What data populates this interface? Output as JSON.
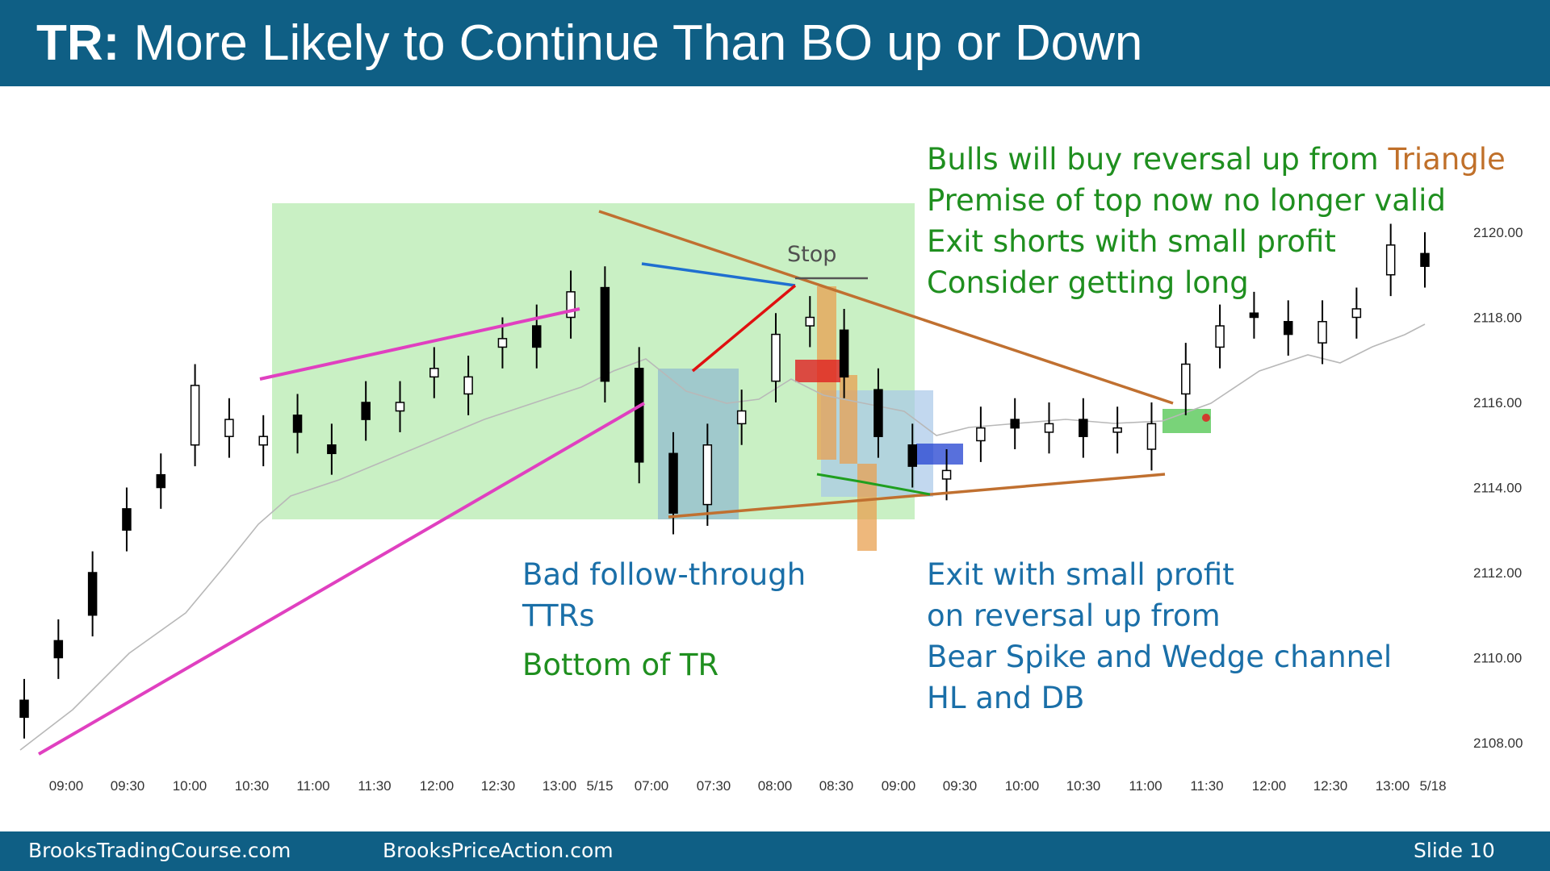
{
  "slide": {
    "title_bold": "TR:",
    "title_rest": " More Likely to Continue Than BO up or Down",
    "footer_left": "BrooksTradingCourse.com",
    "footer_mid": "BrooksPriceAction.com",
    "footer_right": "Slide  10"
  },
  "colors": {
    "header": "#0f5f85",
    "green_text": "#1f8f1f",
    "blue_text": "#1a6fa8",
    "orange_text": "#c0702a",
    "tr_box": "#c9f0c4",
    "magenta_line": "#e040c0",
    "orange_line": "#c07030",
    "blue_line": "#1f6fd0",
    "red_line": "#e01010"
  },
  "chart_data": {
    "type": "candlestick",
    "x_ticks": [
      "09:00",
      "09:30",
      "10:00",
      "10:30",
      "11:00",
      "11:30",
      "12:00",
      "12:30",
      "13:00",
      "5/15",
      "07:00",
      "07:30",
      "08:00",
      "08:30",
      "09:00",
      "09:30",
      "10:00",
      "10:30",
      "11:00",
      "11:30",
      "12:00",
      "12:30",
      "13:00",
      "5/18"
    ],
    "y_ticks": [
      "2120.00",
      "2118.00",
      "2116.00",
      "2114.00",
      "2112.00",
      "2110.00",
      "2108.00"
    ],
    "y_range": [
      2107.5,
      2121.5
    ],
    "ohlc_points": [
      [
        2109,
        2108.6
      ],
      [
        2110.4,
        2110
      ],
      [
        2112,
        2111
      ],
      [
        2113.5,
        2113
      ],
      [
        2114.3,
        2114
      ],
      [
        2115,
        2116.4
      ],
      [
        2115.2,
        2115.6
      ],
      [
        2115,
        2115.2
      ],
      [
        2115.7,
        2115.3
      ],
      [
        2115,
        2114.8
      ],
      [
        2116,
        2115.6
      ],
      [
        2115.8,
        2116
      ],
      [
        2116.6,
        2116.8
      ],
      [
        2116.2,
        2116.6
      ],
      [
        2117.3,
        2117.5
      ],
      [
        2117.8,
        2117.3
      ],
      [
        2118,
        2118.6
      ],
      [
        2118.7,
        2116.5
      ],
      [
        2116.8,
        2114.6
      ],
      [
        2114.8,
        2113.4
      ],
      [
        2113.6,
        2115
      ],
      [
        2115.5,
        2115.8
      ],
      [
        2116.5,
        2117.6
      ],
      [
        2117.8,
        2118
      ],
      [
        2117.7,
        2116.6
      ],
      [
        2116.3,
        2115.2
      ],
      [
        2115,
        2114.5
      ],
      [
        2114.2,
        2114.4
      ],
      [
        2115.1,
        2115.4
      ],
      [
        2115.6,
        2115.4
      ],
      [
        2115.3,
        2115.5
      ],
      [
        2115.6,
        2115.2
      ],
      [
        2115.3,
        2115.4
      ],
      [
        2114.9,
        2115.5
      ],
      [
        2116.2,
        2116.9
      ],
      [
        2117.3,
        2117.8
      ],
      [
        2118.1,
        2118
      ],
      [
        2117.9,
        2117.6
      ],
      [
        2117.4,
        2117.9
      ],
      [
        2118,
        2118.2
      ],
      [
        2119,
        2119.7
      ],
      [
        2119.5,
        2119.2
      ]
    ]
  },
  "annotations": {
    "stop": "Stop",
    "right_top": [
      "Bulls will buy reversal up from ",
      "Triangle",
      "Premise of top now no longer valid",
      "Exit shorts with small profit",
      "Consider getting long"
    ],
    "mid_blue": [
      "Bad follow-through",
      "TTRs"
    ],
    "mid_green": "Bottom of TR",
    "right_bottom": [
      "Exit with small profit",
      "on reversal up from",
      "Bear Spike and Wedge channel",
      "HL and DB"
    ]
  }
}
